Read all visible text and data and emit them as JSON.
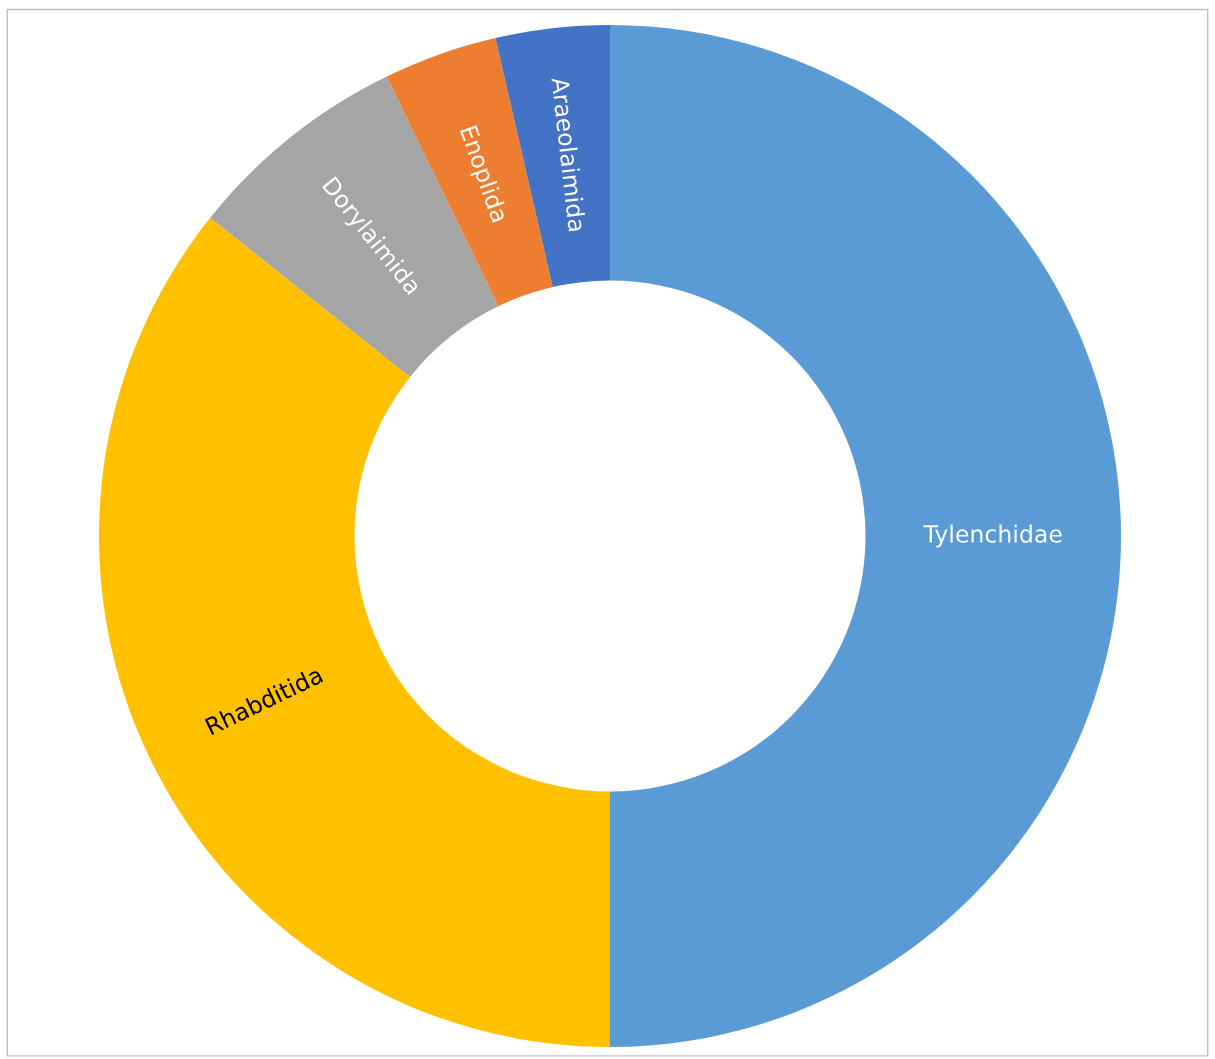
{
  "chart_data": {
    "type": "donut",
    "categories": [
      "Tylenchidae",
      "Rhabditida",
      "Dorylaimida",
      "Enoplida",
      "Araeolaimida"
    ],
    "values": [
      50,
      35.7,
      7.1,
      3.6,
      3.6
    ],
    "colors": [
      "#5b9bd5",
      "#ffc000",
      "#a5a5a5",
      "#ed7d31",
      "#4472c4"
    ],
    "legend": false
  }
}
